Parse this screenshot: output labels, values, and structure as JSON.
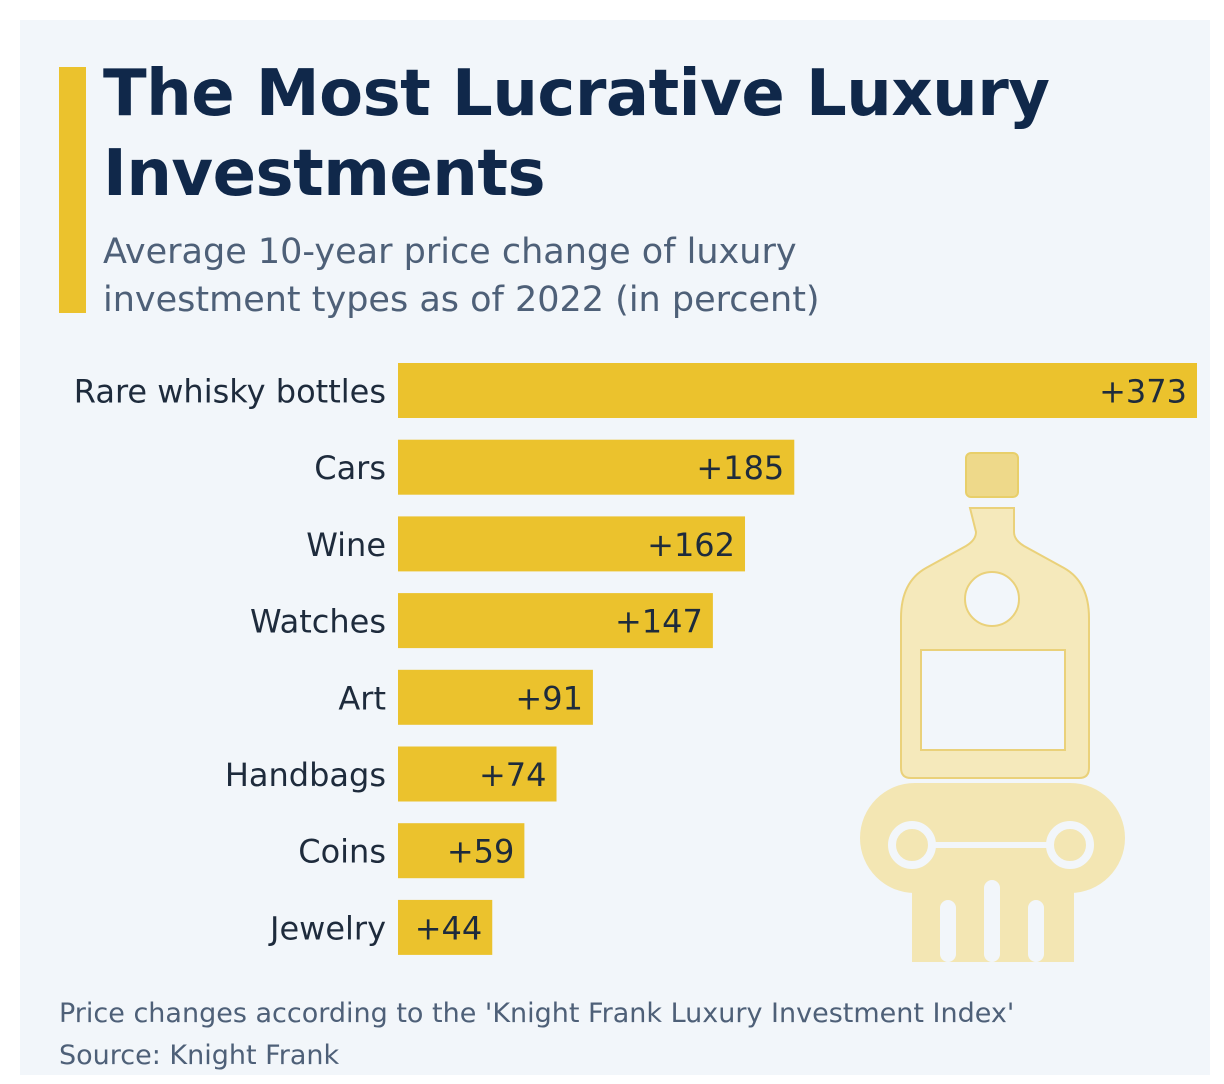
{
  "title": "The Most Lucrative Luxury Investments",
  "subtitle": "Average 10-year price change of luxury investment types as of 2022 (in percent)",
  "footer": {
    "note": "Price changes according to the 'Knight Frank Luxury Investment Index'",
    "source": "Source: Knight Frank"
  },
  "colors": {
    "bar": "#ebc22d",
    "title": "#10284a",
    "text": "#1e2b3c",
    "illustration": "#f2e3a8"
  },
  "illustration": "whisky-bottle-on-column-icon",
  "chart_data": {
    "type": "bar",
    "orientation": "horizontal",
    "title": "The Most Lucrative Luxury Investments",
    "subtitle": "Average 10-year price change of luxury investment types as of 2022 (in percent)",
    "categories": [
      "Rare whisky bottles",
      "Cars",
      "Wine",
      "Watches",
      "Art",
      "Handbags",
      "Coins",
      "Jewelry"
    ],
    "values": [
      373,
      185,
      162,
      147,
      91,
      74,
      59,
      44
    ],
    "value_labels": [
      "+373",
      "+185",
      "+162",
      "+147",
      "+91",
      "+74",
      "+59",
      "+44"
    ],
    "xlim": [
      0,
      373
    ],
    "grid": false,
    "legend": "none"
  }
}
